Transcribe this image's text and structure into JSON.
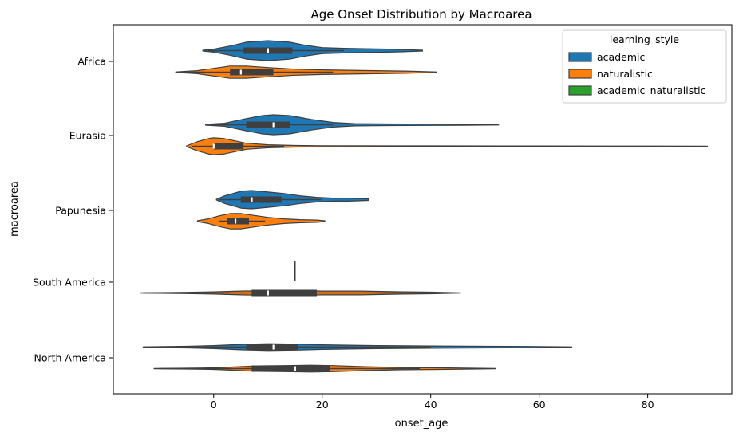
{
  "chart_data": {
    "type": "violin",
    "title": "Age Onset Distribution by Macroarea",
    "xlabel": "onset_age",
    "ylabel": "macroarea",
    "xlim": [
      -18.5,
      95.5
    ],
    "xticks": [
      0,
      20,
      40,
      60,
      80
    ],
    "orientation": "horizontal",
    "grid": false,
    "legend": {
      "title": "learning_style",
      "placement": "top-right",
      "entries": [
        {
          "name": "academic",
          "color": "#1f77b4"
        },
        {
          "name": "naturalistic",
          "color": "#ff7f0e"
        },
        {
          "name": "academic_naturalistic",
          "color": "#2ca02c"
        }
      ]
    },
    "categories": [
      "Africa",
      "Eurasia",
      "Papunesia",
      "South America",
      "North America"
    ],
    "series": [
      {
        "name": "academic",
        "color": "#1f77b4",
        "violins": [
          {
            "category": "Africa",
            "min": -2,
            "max": 38.5,
            "q1": 5.5,
            "median": 10,
            "q3": 14.5,
            "whisker_low": -1,
            "whisker_high": 24,
            "density": [
              [
                -2,
                0.5
              ],
              [
                0,
                2
              ],
              [
                3,
                6
              ],
              [
                6,
                11
              ],
              [
                10,
                13
              ],
              [
                14,
                11
              ],
              [
                17,
                7
              ],
              [
                20,
                4
              ],
              [
                24,
                3
              ],
              [
                28,
                2.5
              ],
              [
                32,
                2
              ],
              [
                35,
                1.5
              ],
              [
                38.5,
                0.5
              ]
            ]
          },
          {
            "category": "Eurasia",
            "min": -1.5,
            "max": 52.5,
            "q1": 6,
            "median": 11,
            "q3": 14,
            "whisker_low": -0.5,
            "whisker_high": 22,
            "density": [
              [
                -1.5,
                0.5
              ],
              [
                2,
                2
              ],
              [
                6,
                8
              ],
              [
                9,
                12
              ],
              [
                11,
                13
              ],
              [
                14,
                12
              ],
              [
                18,
                7
              ],
              [
                22,
                3
              ],
              [
                26,
                1.5
              ],
              [
                32,
                1
              ],
              [
                40,
                0.8
              ],
              [
                46,
                0.6
              ],
              [
                52.5,
                0.3
              ]
            ]
          },
          {
            "category": "Papunesia",
            "min": 0.5,
            "max": 28.5,
            "q1": 5,
            "median": 7,
            "q3": 12.5,
            "whisker_low": 1,
            "whisker_high": 20,
            "density": [
              [
                0.5,
                0.5
              ],
              [
                2,
                5
              ],
              [
                5,
                11
              ],
              [
                7,
                12
              ],
              [
                10,
                10
              ],
              [
                13,
                8
              ],
              [
                16,
                5
              ],
              [
                19,
                3
              ],
              [
                22,
                2
              ],
              [
                25,
                2
              ],
              [
                28.5,
                1
              ]
            ]
          },
          {
            "category": "South America",
            "min": 15,
            "max": 15,
            "q1": 15,
            "median": 15,
            "q3": 15,
            "whisker_low": 15,
            "whisker_high": 15,
            "density": []
          },
          {
            "category": "North America",
            "min": -13,
            "max": 66,
            "q1": 6,
            "median": 11,
            "q3": 15.5,
            "whisker_low": -12,
            "whisker_high": 40,
            "density": [
              [
                -13,
                0.3
              ],
              [
                -5,
                1
              ],
              [
                0,
                2
              ],
              [
                5,
                3.5
              ],
              [
                10,
                4.5
              ],
              [
                15,
                4
              ],
              [
                20,
                3
              ],
              [
                25,
                2.5
              ],
              [
                30,
                2
              ],
              [
                40,
                1.5
              ],
              [
                50,
                1
              ],
              [
                58,
                0.8
              ],
              [
                66,
                0.3
              ]
            ]
          }
        ]
      },
      {
        "name": "naturalistic",
        "color": "#ff7f0e",
        "violins": [
          {
            "category": "Africa",
            "min": -7,
            "max": 41,
            "q1": 3,
            "median": 5,
            "q3": 11,
            "whisker_low": -6,
            "whisker_high": 22,
            "density": [
              [
                -7,
                0.3
              ],
              [
                -3,
                2
              ],
              [
                0,
                5
              ],
              [
                3,
                8
              ],
              [
                6,
                8
              ],
              [
                10,
                6
              ],
              [
                15,
                4
              ],
              [
                20,
                3
              ],
              [
                25,
                2.5
              ],
              [
                30,
                2
              ],
              [
                35,
                1.5
              ],
              [
                41,
                0.3
              ]
            ]
          },
          {
            "category": "Eurasia",
            "min": -5,
            "max": 91,
            "q1": 0,
            "median": 0,
            "q3": 5.5,
            "whisker_low": -4,
            "whisker_high": 13,
            "density": [
              [
                -5,
                0.5
              ],
              [
                -3,
                6
              ],
              [
                -1,
                10
              ],
              [
                0,
                11
              ],
              [
                2,
                10
              ],
              [
                4,
                7
              ],
              [
                6,
                4
              ],
              [
                10,
                2
              ],
              [
                15,
                1
              ],
              [
                20,
                0.7
              ],
              [
                40,
                0.5
              ],
              [
                60,
                0.4
              ],
              [
                80,
                0.3
              ],
              [
                91,
                0.2
              ]
            ]
          },
          {
            "category": "Papunesia",
            "min": -3,
            "max": 20.5,
            "q1": 2.5,
            "median": 4,
            "q3": 6.5,
            "whisker_low": 1,
            "whisker_high": 9.5,
            "density": [
              [
                -3,
                0.5
              ],
              [
                -1,
                3
              ],
              [
                1,
                7
              ],
              [
                3,
                10
              ],
              [
                5,
                10
              ],
              [
                7,
                8
              ],
              [
                10,
                5
              ],
              [
                13,
                3
              ],
              [
                16,
                2
              ],
              [
                19,
                1.5
              ],
              [
                20.5,
                0.5
              ]
            ]
          },
          {
            "category": "South America",
            "min": -13.5,
            "max": 45.5,
            "q1": 7,
            "median": 10,
            "q3": 19,
            "whisker_low": -13,
            "whisker_high": 40,
            "density": [
              [
                -13.5,
                0.2
              ],
              [
                -5,
                0.8
              ],
              [
                0,
                1.5
              ],
              [
                5,
                2.5
              ],
              [
                10,
                3
              ],
              [
                15,
                3
              ],
              [
                20,
                2.5
              ],
              [
                27,
                2.5
              ],
              [
                35,
                1.5
              ],
              [
                40,
                1
              ],
              [
                45.5,
                0.2
              ]
            ]
          },
          {
            "category": "North America",
            "min": -11,
            "max": 52,
            "q1": 7,
            "median": 15,
            "q3": 21.5,
            "whisker_low": -10,
            "whisker_high": 38,
            "density": [
              [
                -11,
                0.2
              ],
              [
                -5,
                0.5
              ],
              [
                0,
                1
              ],
              [
                3,
                2
              ],
              [
                8,
                3.5
              ],
              [
                13,
                4
              ],
              [
                18,
                4.5
              ],
              [
                22,
                4
              ],
              [
                28,
                2.5
              ],
              [
                35,
                1.5
              ],
              [
                42,
                1
              ],
              [
                52,
                0.2
              ]
            ]
          }
        ]
      }
    ]
  }
}
